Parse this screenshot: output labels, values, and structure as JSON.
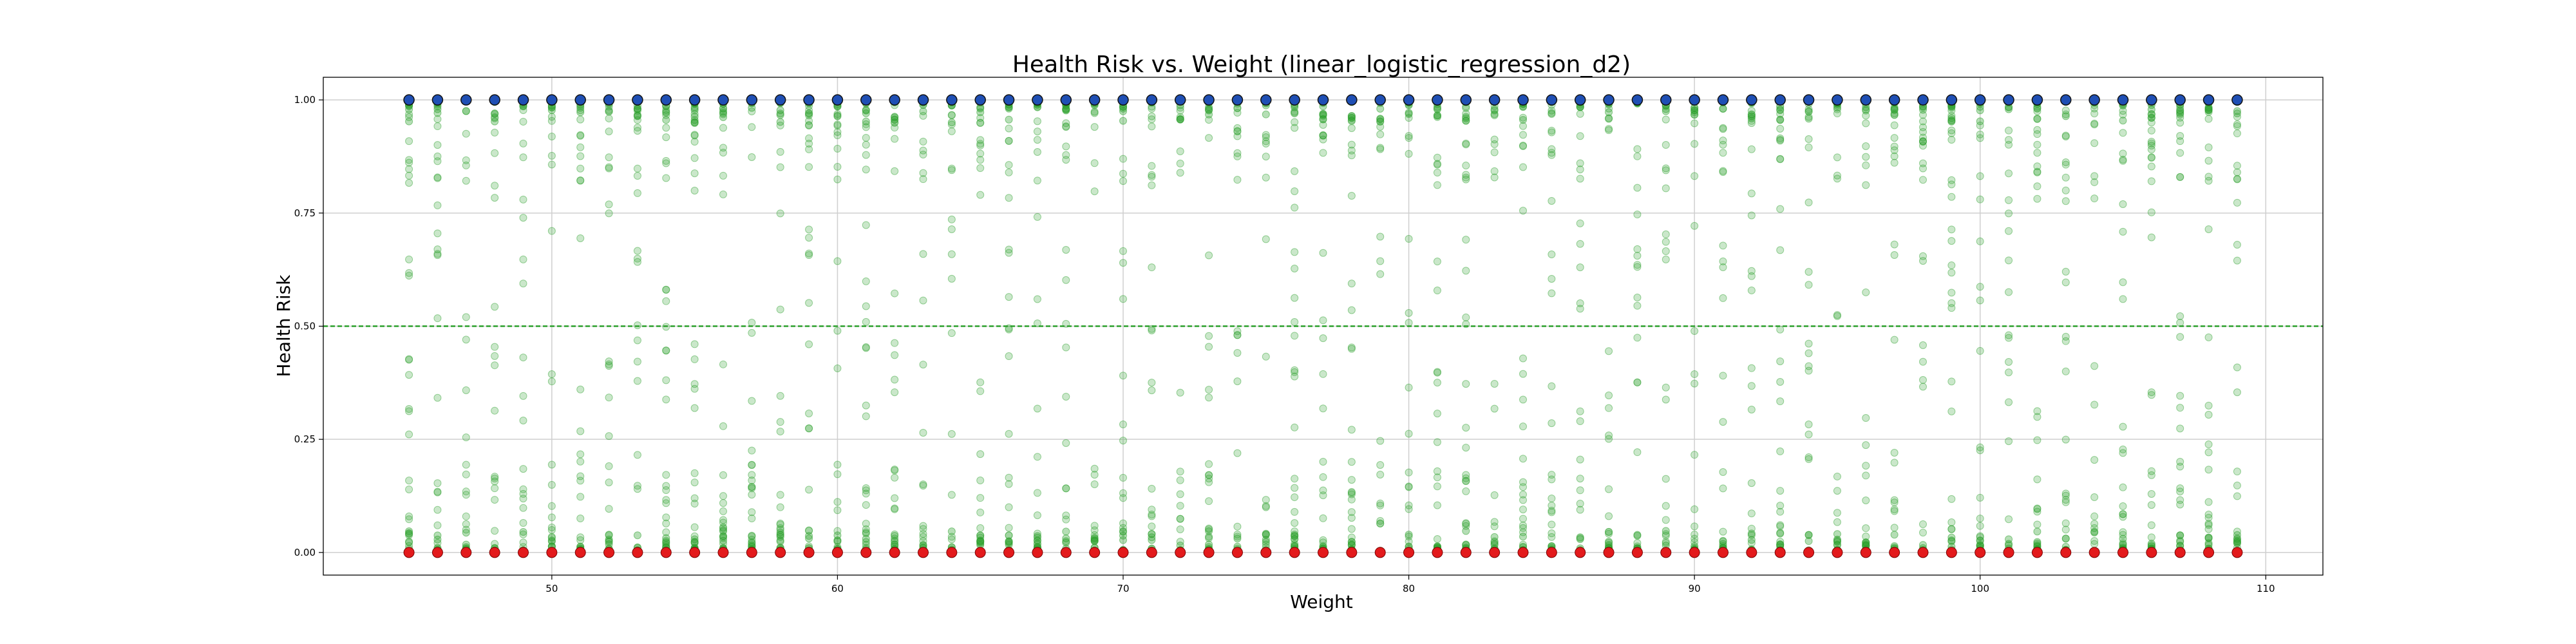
{
  "chart_data": {
    "type": "scatter",
    "title": "Health Risk vs. Weight (linear_logistic_regression_d2)",
    "xlabel": "Weight",
    "ylabel": "Health Risk",
    "xlim": [
      42,
      112
    ],
    "ylim": [
      -0.05,
      1.05
    ],
    "xticks": [
      50,
      60,
      70,
      80,
      90,
      100,
      110
    ],
    "yticks": [
      0.0,
      0.25,
      0.5,
      0.75,
      1.0
    ],
    "xtick_labels": [
      "50",
      "60",
      "70",
      "80",
      "90",
      "100",
      "110"
    ],
    "ytick_labels": [
      "0.00",
      "0.25",
      "0.50",
      "0.75",
      "1.00"
    ],
    "grid": true,
    "threshold": {
      "y": 0.5,
      "style": "dashed",
      "color": "#2ca02c"
    },
    "x_values": {
      "start": 45,
      "end": 109,
      "step": 1
    },
    "series": [
      {
        "role": "predicted-probabilities",
        "color": "#2ca02c",
        "opacity": 0.25,
        "y_distribution": "dense near 0 and 1, sparse in between"
      },
      {
        "role": "class-1-observations",
        "y": 1.0,
        "color": "#1f4fb4"
      },
      {
        "role": "class-0-observations",
        "y": 0.0,
        "color": "#e31a1c"
      }
    ]
  }
}
